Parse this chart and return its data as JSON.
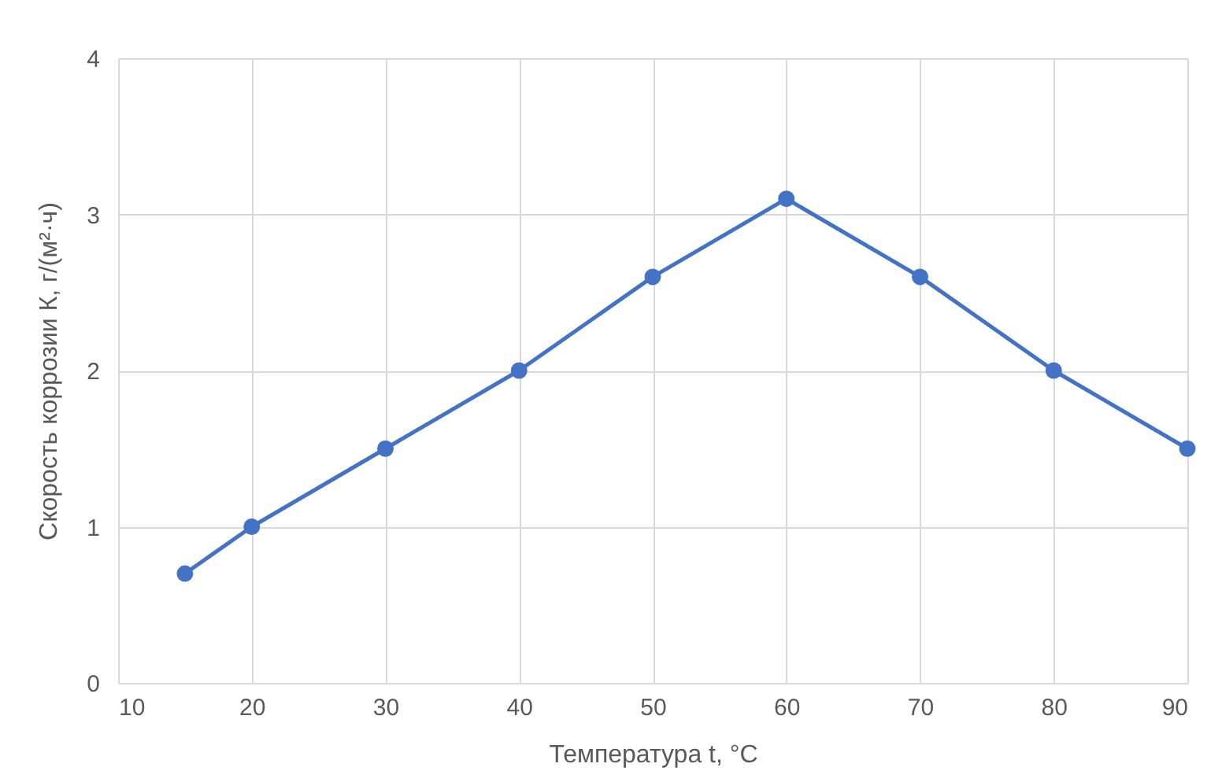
{
  "chart_data": {
    "type": "line",
    "xlabel": "Температура t, °C",
    "ylabel": "Скорость коррозии К, г/(м²·ч)",
    "x": [
      15,
      20,
      30,
      40,
      50,
      60,
      70,
      80,
      90
    ],
    "series": [
      {
        "color": "#4472c4",
        "values": [
          0.7,
          1,
          1.5,
          2,
          2.6,
          3.1,
          2.6,
          2,
          1.5
        ]
      }
    ],
    "xlim": [
      10,
      90
    ],
    "xticks": [
      10,
      20,
      30,
      40,
      50,
      60,
      70,
      80,
      90
    ],
    "ylim": [
      0,
      4
    ],
    "yticks": [
      0,
      1,
      2,
      3,
      4
    ],
    "grid": true,
    "marker": "circle",
    "line_style": "solid",
    "legend": false
  }
}
